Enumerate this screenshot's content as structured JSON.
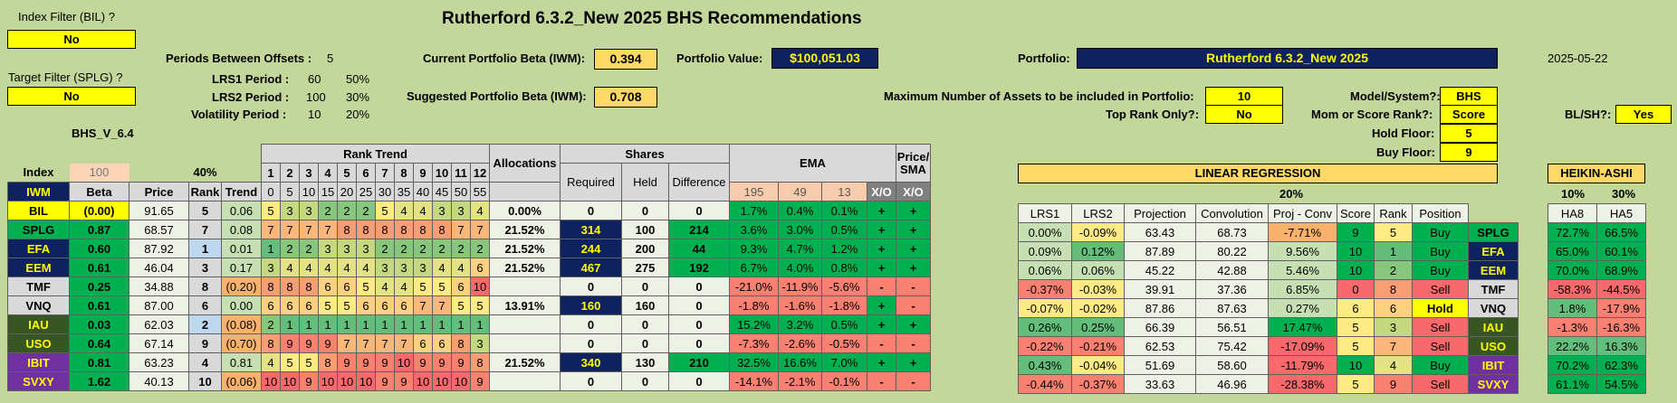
{
  "title": "Rutherford 6.3.2_New 2025 BHS Recommendations",
  "date": "2025-05-22",
  "filters": {
    "index_label": "Index Filter (BIL) ?",
    "index_value": "No",
    "target_label": "Target Filter (SPLG) ?",
    "target_value": "No",
    "version": "BHS_V_6.4"
  },
  "periods": {
    "offsets_label": "Periods Between Offsets :",
    "offsets_value": "5",
    "lrs1_label": "LRS1 Period :",
    "lrs1_value": "60",
    "lrs1_pct": "50%",
    "lrs2_label": "LRS2 Period :",
    "lrs2_value": "100",
    "lrs2_pct": "30%",
    "vol_label": "Volatility Period :",
    "vol_value": "10",
    "vol_pct": "20%"
  },
  "portfolio": {
    "current_beta_label": "Current Portfolio Beta (IWM):",
    "current_beta": "0.394",
    "suggested_beta_label": "Suggested Portfolio Beta (IWM):",
    "suggested_beta": "0.708",
    "value_label": "Portfolio Value:",
    "value": "$100,051.03",
    "name_label": "Portfolio:",
    "name": "Rutherford 6.3.2_New 2025"
  },
  "settings": {
    "max_assets_label": "Maximum Number of Assets to be included in Portfolio:",
    "max_assets": "10",
    "top_rank_label": "Top Rank Only?:",
    "top_rank": "No",
    "model_label": "Model/System?:",
    "model": "BHS",
    "mom_label": "Mom or Score Rank?:",
    "mom": "Score",
    "hold_label": "Hold Floor:",
    "hold": "5",
    "buy_label": "Buy Floor:",
    "buy": "9",
    "blsh_label": "BL/SH?:",
    "blsh": "Yes"
  },
  "main_table": {
    "index_header": "Index",
    "index_value": "100",
    "pct40": "40%",
    "rank_trend_header": "Rank Trend",
    "rank_trend_cols": [
      "1",
      "2",
      "3",
      "4",
      "5",
      "6",
      "7",
      "8",
      "9",
      "10",
      "11",
      "12"
    ],
    "rank_trend_offsets": [
      "0",
      "5",
      "10",
      "15",
      "20",
      "25",
      "30",
      "35",
      "40",
      "45",
      "50",
      "55"
    ],
    "allocations_header": "Allocations",
    "shares_header": "Shares",
    "required_header": "Required",
    "held_header": "Held",
    "difference_header": "Difference",
    "ema_header": "EMA",
    "ema_periods": [
      "195",
      "49",
      "13"
    ],
    "xo_header": "X/O",
    "price_sma_header": "Price/ SMA",
    "price_sma_xo": "X/O",
    "col_iwm": "IWM",
    "col_beta": "Beta",
    "col_price": "Price",
    "col_rank": "Rank",
    "col_trend": "Trend",
    "rows": [
      {
        "ticker": "BIL",
        "beta": "(0.00)",
        "price": "91.65",
        "rank": "5",
        "trend": "0.06",
        "rt": [
          "5",
          "3",
          "3",
          "2",
          "2",
          "2",
          "5",
          "4",
          "4",
          "3",
          "3",
          "4"
        ],
        "alloc": "0.00%",
        "req": "0",
        "held": "0",
        "diff": "0",
        "e1": "1.7%",
        "e2": "0.4%",
        "e3": "0.1%",
        "xo": "+",
        "psma": "+"
      },
      {
        "ticker": "SPLG",
        "beta": "0.87",
        "price": "68.57",
        "rank": "7",
        "trend": "0.08",
        "rt": [
          "7",
          "7",
          "7",
          "7",
          "8",
          "8",
          "8",
          "8",
          "8",
          "8",
          "7",
          "7"
        ],
        "alloc": "21.52%",
        "req": "314",
        "held": "100",
        "diff": "214",
        "e1": "3.6%",
        "e2": "3.0%",
        "e3": "0.5%",
        "xo": "+",
        "psma": "+"
      },
      {
        "ticker": "EFA",
        "beta": "0.60",
        "price": "87.92",
        "rank": "1",
        "trend": "0.01",
        "rt": [
          "1",
          "2",
          "2",
          "3",
          "3",
          "3",
          "2",
          "2",
          "2",
          "2",
          "2",
          "2"
        ],
        "alloc": "21.52%",
        "req": "244",
        "held": "200",
        "diff": "44",
        "e1": "9.3%",
        "e2": "4.7%",
        "e3": "1.2%",
        "xo": "+",
        "psma": "+"
      },
      {
        "ticker": "EEM",
        "beta": "0.61",
        "price": "46.04",
        "rank": "3",
        "trend": "0.17",
        "rt": [
          "3",
          "4",
          "4",
          "4",
          "4",
          "4",
          "3",
          "3",
          "3",
          "4",
          "4",
          "6"
        ],
        "alloc": "21.52%",
        "req": "467",
        "held": "275",
        "diff": "192",
        "e1": "6.7%",
        "e2": "4.0%",
        "e3": "0.8%",
        "xo": "+",
        "psma": "+"
      },
      {
        "ticker": "TMF",
        "beta": "0.25",
        "price": "34.88",
        "rank": "8",
        "trend": "(0.20)",
        "rt": [
          "8",
          "8",
          "8",
          "6",
          "6",
          "5",
          "4",
          "4",
          "5",
          "5",
          "6",
          "10"
        ],
        "alloc": "",
        "req": "0",
        "held": "0",
        "diff": "0",
        "e1": "-21.0%",
        "e2": "-11.9%",
        "e3": "-5.6%",
        "xo": "-",
        "psma": "-"
      },
      {
        "ticker": "VNQ",
        "beta": "0.61",
        "price": "87.00",
        "rank": "6",
        "trend": "0.00",
        "rt": [
          "6",
          "6",
          "6",
          "5",
          "5",
          "6",
          "6",
          "6",
          "7",
          "7",
          "5",
          "5"
        ],
        "alloc": "13.91%",
        "req": "160",
        "held": "160",
        "diff": "0",
        "e1": "-1.8%",
        "e2": "-1.6%",
        "e3": "-1.8%",
        "xo": "+",
        "psma": "-"
      },
      {
        "ticker": "IAU",
        "beta": "0.03",
        "price": "62.03",
        "rank": "2",
        "trend": "(0.08)",
        "rt": [
          "2",
          "1",
          "1",
          "1",
          "1",
          "1",
          "1",
          "1",
          "1",
          "1",
          "1",
          "1"
        ],
        "alloc": "",
        "req": "0",
        "held": "0",
        "diff": "0",
        "e1": "15.2%",
        "e2": "3.2%",
        "e3": "0.5%",
        "xo": "+",
        "psma": "+"
      },
      {
        "ticker": "USO",
        "beta": "0.64",
        "price": "67.14",
        "rank": "9",
        "trend": "(0.70)",
        "rt": [
          "8",
          "9",
          "9",
          "9",
          "7",
          "7",
          "7",
          "7",
          "6",
          "6",
          "8",
          "3"
        ],
        "alloc": "",
        "req": "0",
        "held": "0",
        "diff": "0",
        "e1": "-7.3%",
        "e2": "-2.6%",
        "e3": "-0.5%",
        "xo": "-",
        "psma": "-"
      },
      {
        "ticker": "IBIT",
        "beta": "0.81",
        "price": "63.23",
        "rank": "4",
        "trend": "0.81",
        "rt": [
          "4",
          "5",
          "5",
          "8",
          "9",
          "9",
          "9",
          "10",
          "9",
          "9",
          "9",
          "8"
        ],
        "alloc": "21.52%",
        "req": "340",
        "held": "130",
        "diff": "210",
        "e1": "32.5%",
        "e2": "16.6%",
        "e3": "7.0%",
        "xo": "+",
        "psma": "+"
      },
      {
        "ticker": "SVXY",
        "beta": "1.62",
        "price": "40.13",
        "rank": "10",
        "trend": "(0.06)",
        "rt": [
          "10",
          "10",
          "9",
          "10",
          "10",
          "10",
          "9",
          "9",
          "10",
          "10",
          "10",
          "9"
        ],
        "alloc": "",
        "req": "0",
        "held": "0",
        "diff": "0",
        "e1": "-14.1%",
        "e2": "-2.1%",
        "e3": "-0.1%",
        "xo": "-",
        "psma": "-"
      }
    ]
  },
  "lr_table": {
    "header": "LINEAR REGRESSION",
    "pct": "20%",
    "cols": [
      "LRS1",
      "LRS2",
      "Projection",
      "Convolution",
      "Proj - Conv",
      "Score",
      "Rank",
      "Position"
    ],
    "rows": [
      {
        "ticker": "SPLG",
        "lrs1": "0.00%",
        "lrs2": "-0.09%",
        "proj": "63.43",
        "conv": "68.73",
        "pc": "-7.71%",
        "score": "9",
        "rank": "5",
        "pos": "Buy"
      },
      {
        "ticker": "EFA",
        "lrs1": "0.09%",
        "lrs2": "0.12%",
        "proj": "87.89",
        "conv": "80.22",
        "pc": "9.56%",
        "score": "10",
        "rank": "1",
        "pos": "Buy"
      },
      {
        "ticker": "EEM",
        "lrs1": "0.06%",
        "lrs2": "0.06%",
        "proj": "45.22",
        "conv": "42.88",
        "pc": "5.46%",
        "score": "10",
        "rank": "2",
        "pos": "Buy"
      },
      {
        "ticker": "TMF",
        "lrs1": "-0.37%",
        "lrs2": "-0.03%",
        "proj": "39.91",
        "conv": "37.36",
        "pc": "6.85%",
        "score": "0",
        "rank": "8",
        "pos": "Sell"
      },
      {
        "ticker": "VNQ",
        "lrs1": "-0.07%",
        "lrs2": "-0.02%",
        "proj": "87.86",
        "conv": "87.63",
        "pc": "0.27%",
        "score": "6",
        "rank": "6",
        "pos": "Hold"
      },
      {
        "ticker": "IAU",
        "lrs1": "0.26%",
        "lrs2": "0.25%",
        "proj": "66.39",
        "conv": "56.51",
        "pc": "17.47%",
        "score": "5",
        "rank": "3",
        "pos": "Sell"
      },
      {
        "ticker": "USO",
        "lrs1": "-0.22%",
        "lrs2": "-0.21%",
        "proj": "62.53",
        "conv": "75.42",
        "pc": "-17.09%",
        "score": "5",
        "rank": "7",
        "pos": "Sell"
      },
      {
        "ticker": "IBIT",
        "lrs1": "0.43%",
        "lrs2": "-0.04%",
        "proj": "51.69",
        "conv": "58.60",
        "pc": "-11.79%",
        "score": "10",
        "rank": "4",
        "pos": "Buy"
      },
      {
        "ticker": "SVXY",
        "lrs1": "-0.44%",
        "lrs2": "-0.37%",
        "proj": "33.63",
        "conv": "46.96",
        "pc": "-28.38%",
        "score": "5",
        "rank": "9",
        "pos": "Sell"
      }
    ]
  },
  "ha_table": {
    "header": "HEIKIN-ASHI",
    "pct1": "10%",
    "pct2": "30%",
    "cols": [
      "HA8",
      "HA5"
    ],
    "rows": [
      {
        "ha8": "72.7%",
        "ha5": "66.5%"
      },
      {
        "ha8": "65.0%",
        "ha5": "60.1%"
      },
      {
        "ha8": "70.0%",
        "ha5": "68.9%"
      },
      {
        "ha8": "-58.3%",
        "ha5": "-44.5%"
      },
      {
        "ha8": "1.8%",
        "ha5": "-17.9%"
      },
      {
        "ha8": "-1.3%",
        "ha5": "-16.3%"
      },
      {
        "ha8": "22.2%",
        "ha5": "16.3%"
      },
      {
        "ha8": "70.2%",
        "ha5": "62.3%"
      },
      {
        "ha8": "61.1%",
        "ha5": "54.5%"
      }
    ]
  },
  "colors": {
    "background": "#c4d79b",
    "navy": "#0f2260",
    "yellow": "#ffff00",
    "green": "#00b050",
    "red": "#f8696b"
  }
}
